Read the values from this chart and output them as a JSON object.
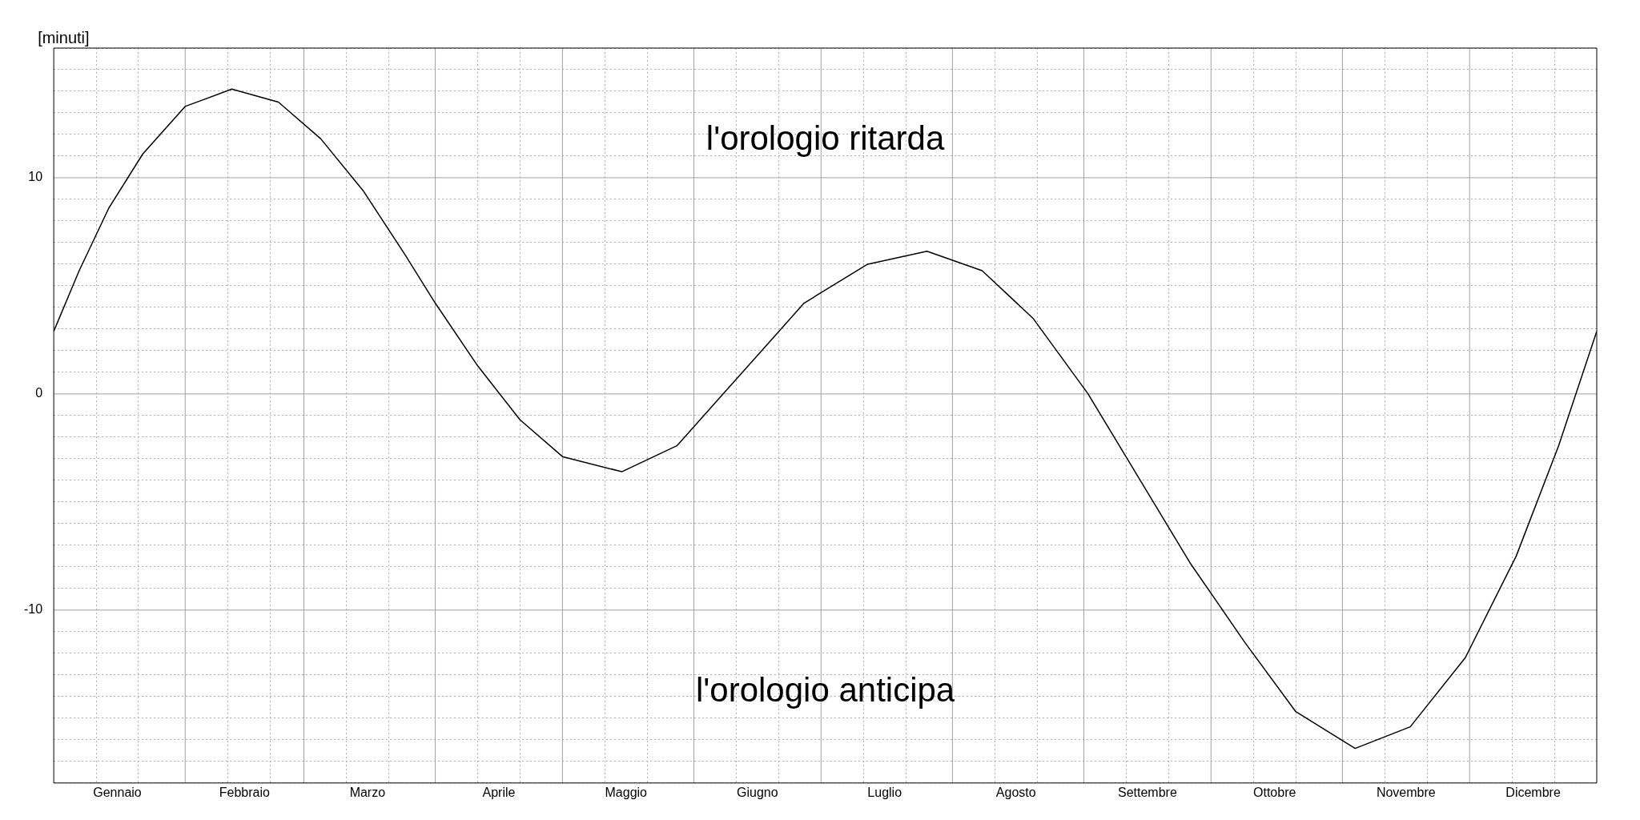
{
  "chart_data": {
    "type": "line",
    "ylabel": "[minuti]",
    "annotations": [
      "l'orologio ritarda",
      "l'orologio anticipa"
    ],
    "x": [
      "--01-01",
      "--01-07",
      "--01-14",
      "--01-22",
      "--02-01",
      "--02-12",
      "--02-23",
      "--03-05",
      "--03-15",
      "--03-25",
      "--04-01",
      "--04-11",
      "--04-21",
      "--05-01",
      "--05-15",
      "--05-28",
      "--06-07",
      "--06-17",
      "--06-27",
      "--07-12",
      "--07-26",
      "--08-08",
      "--08-20",
      "--09-02",
      "--09-14",
      "--09-26",
      "--10-09",
      "--10-21",
      "--11-04",
      "--11-17",
      "--11-30",
      "--12-12",
      "--12-22",
      "--12-31"
    ],
    "series": [
      {
        "color": "#000000",
        "values": [
          2.9,
          5.7,
          8.6,
          11.1,
          13.3,
          14.1,
          13.5,
          11.8,
          9.4,
          6.4,
          4.2,
          1.3,
          -1.2,
          -2.9,
          -3.6,
          -2.4,
          -0.2,
          2.0,
          4.2,
          6.0,
          6.6,
          5.7,
          3.5,
          0.0,
          -3.9,
          -7.8,
          -11.5,
          -14.7,
          -16.4,
          -15.4,
          -12.2,
          -7.5,
          -2.4,
          2.9
        ]
      }
    ],
    "xlim": [
      "--01-01",
      "--12-31"
    ],
    "xticks": [
      {
        "value": "--01-11",
        "label": null
      },
      {
        "value": "--01-21",
        "label": null
      },
      {
        "value": "--01-16",
        "label": "Gennaio"
      },
      {
        "value": "--02-11",
        "label": null
      },
      {
        "value": "--02-21",
        "label": null
      },
      {
        "value": "--02-15",
        "label": "Febbraio"
      },
      {
        "value": "--03-11",
        "label": null
      },
      {
        "value": "--03-21",
        "label": null
      },
      {
        "value": "--03-16",
        "label": "Marzo"
      },
      {
        "value": "--04-11",
        "label": null
      },
      {
        "value": "--04-21",
        "label": null
      },
      {
        "value": "--04-16",
        "label": "Aprile"
      },
      {
        "value": "--05-11",
        "label": null
      },
      {
        "value": "--05-21",
        "label": null
      },
      {
        "value": "--05-16",
        "label": "Maggio"
      },
      {
        "value": "--06-11",
        "label": null
      },
      {
        "value": "--06-21",
        "label": null
      },
      {
        "value": "--06-16",
        "label": "Giugno"
      },
      {
        "value": "--07-11",
        "label": null
      },
      {
        "value": "--07-21",
        "label": null
      },
      {
        "value": "--07-16",
        "label": "Luglio"
      },
      {
        "value": "--08-11",
        "label": null
      },
      {
        "value": "--08-21",
        "label": null
      },
      {
        "value": "--08-16",
        "label": "Agosto"
      },
      {
        "value": "--09-11",
        "label": null
      },
      {
        "value": "--09-21",
        "label": null
      },
      {
        "value": "--09-16",
        "label": "Settembre"
      },
      {
        "value": "--10-11",
        "label": null
      },
      {
        "value": "--10-21",
        "label": null
      },
      {
        "value": "--10-16",
        "label": "Ottobre"
      },
      {
        "value": "--11-11",
        "label": null
      },
      {
        "value": "--11-21",
        "label": null
      },
      {
        "value": "--11-16",
        "label": "Novembre"
      },
      {
        "value": "--12-11",
        "label": null
      },
      {
        "value": "--12-21",
        "label": null
      },
      {
        "value": "--12-16",
        "label": "Dicembre"
      }
    ],
    "ref_lines": [
      {
        "axis": "x",
        "value": "--02-01",
        "color": "#a0a0a0",
        "line_style": "solid"
      },
      {
        "axis": "x",
        "value": "--03-01",
        "color": "#a0a0a0",
        "line_style": "solid"
      },
      {
        "axis": "x",
        "value": "--04-01",
        "color": "#a0a0a0",
        "line_style": "solid"
      },
      {
        "axis": "x",
        "value": "--05-01",
        "color": "#a0a0a0",
        "line_style": "solid"
      },
      {
        "axis": "x",
        "value": "--06-01",
        "color": "#a0a0a0",
        "line_style": "solid"
      },
      {
        "axis": "x",
        "value": "--07-01",
        "color": "#a0a0a0",
        "line_style": "solid"
      },
      {
        "axis": "x",
        "value": "--08-01",
        "color": "#a0a0a0",
        "line_style": "solid"
      },
      {
        "axis": "x",
        "value": "--09-01",
        "color": "#a0a0a0",
        "line_style": "solid"
      },
      {
        "axis": "x",
        "value": "--10-01",
        "color": "#a0a0a0",
        "line_style": "solid"
      },
      {
        "axis": "x",
        "value": "--11-01",
        "color": "#a0a0a0",
        "line_style": "solid"
      },
      {
        "axis": "x",
        "value": "--12-01",
        "color": "#a0a0a0",
        "line_style": "solid"
      }
    ],
    "ylim": [
      -18,
      16
    ],
    "yticks": [
      {
        "value": -18,
        "label": null
      },
      {
        "value": -17,
        "label": null
      },
      {
        "value": -16,
        "label": null
      },
      {
        "value": -15,
        "label": null
      },
      {
        "value": -14,
        "label": null
      },
      {
        "value": -13,
        "label": null
      },
      {
        "value": -12,
        "label": null
      },
      {
        "value": -11,
        "label": null
      },
      -10,
      {
        "value": -9,
        "label": null
      },
      {
        "value": -8,
        "label": null
      },
      {
        "value": -7,
        "label": null
      },
      {
        "value": -6,
        "label": null
      },
      {
        "value": -5,
        "label": null
      },
      {
        "value": -4,
        "label": null
      },
      {
        "value": -3,
        "label": null
      },
      {
        "value": -2,
        "label": null
      },
      {
        "value": -1,
        "label": null
      },
      0,
      {
        "value": 1,
        "label": null
      },
      {
        "value": 2,
        "label": null
      },
      {
        "value": 3,
        "label": null
      },
      {
        "value": 4,
        "label": null
      },
      {
        "value": 5,
        "label": null
      },
      {
        "value": 6,
        "label": null
      },
      {
        "value": 7,
        "label": null
      },
      {
        "value": 8,
        "label": null
      },
      {
        "value": 9,
        "label": null
      },
      10,
      {
        "value": 11,
        "label": null
      },
      {
        "value": 12,
        "label": null
      },
      {
        "value": 13,
        "label": null
      },
      {
        "value": 14,
        "label": null
      },
      {
        "value": 15,
        "label": null
      },
      {
        "value": 16,
        "label": null
      }
    ],
    "grid": true,
    "legend": false,
    "marker": "none",
    "line_style": "solid"
  }
}
